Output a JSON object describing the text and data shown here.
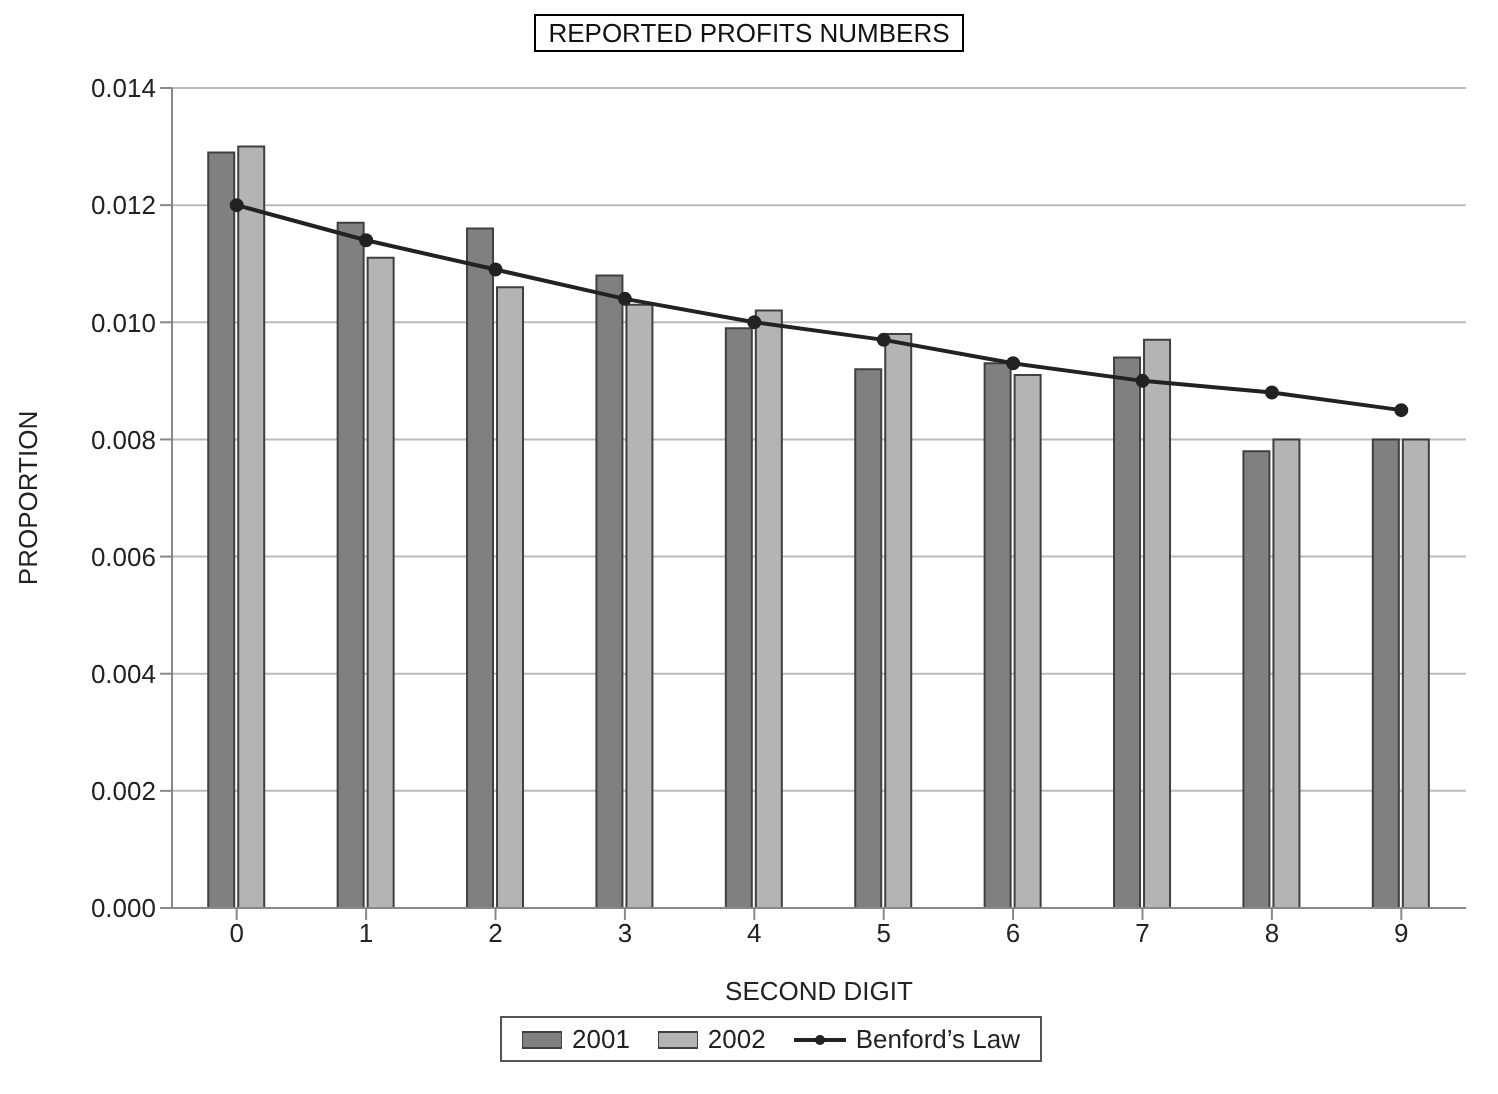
{
  "chart_data": {
    "type": "bar",
    "title": "REPORTED PROFITS NUMBERS",
    "xlabel": "SECOND DIGIT",
    "ylabel": "PROPORTION",
    "categories": [
      "0",
      "1",
      "2",
      "3",
      "4",
      "5",
      "6",
      "7",
      "8",
      "9"
    ],
    "series": [
      {
        "name": "2001",
        "color": "#808080",
        "values": [
          0.0129,
          0.0117,
          0.0116,
          0.0108,
          0.0099,
          0.0092,
          0.0093,
          0.0094,
          0.0078,
          0.008
        ]
      },
      {
        "name": "2002",
        "color": "#b4b4b4",
        "values": [
          0.013,
          0.0111,
          0.0106,
          0.0103,
          0.0102,
          0.0098,
          0.0091,
          0.0097,
          0.008,
          0.008
        ]
      },
      {
        "name": "Benford’s Law",
        "type": "line",
        "color": "#222222",
        "marker": "circle",
        "values": [
          0.012,
          0.0114,
          0.0109,
          0.0104,
          0.01,
          0.0097,
          0.0093,
          0.009,
          0.0088,
          0.0085
        ]
      }
    ],
    "ylim": [
      0,
      0.014
    ],
    "yticks": [
      {
        "value": 0,
        "label": "0.000"
      },
      0.002,
      0.004,
      0.006,
      0.008,
      {
        "value": 0.01,
        "label": "0.010"
      },
      0.012,
      0.014
    ],
    "grid": "y",
    "legend": "bottom"
  }
}
